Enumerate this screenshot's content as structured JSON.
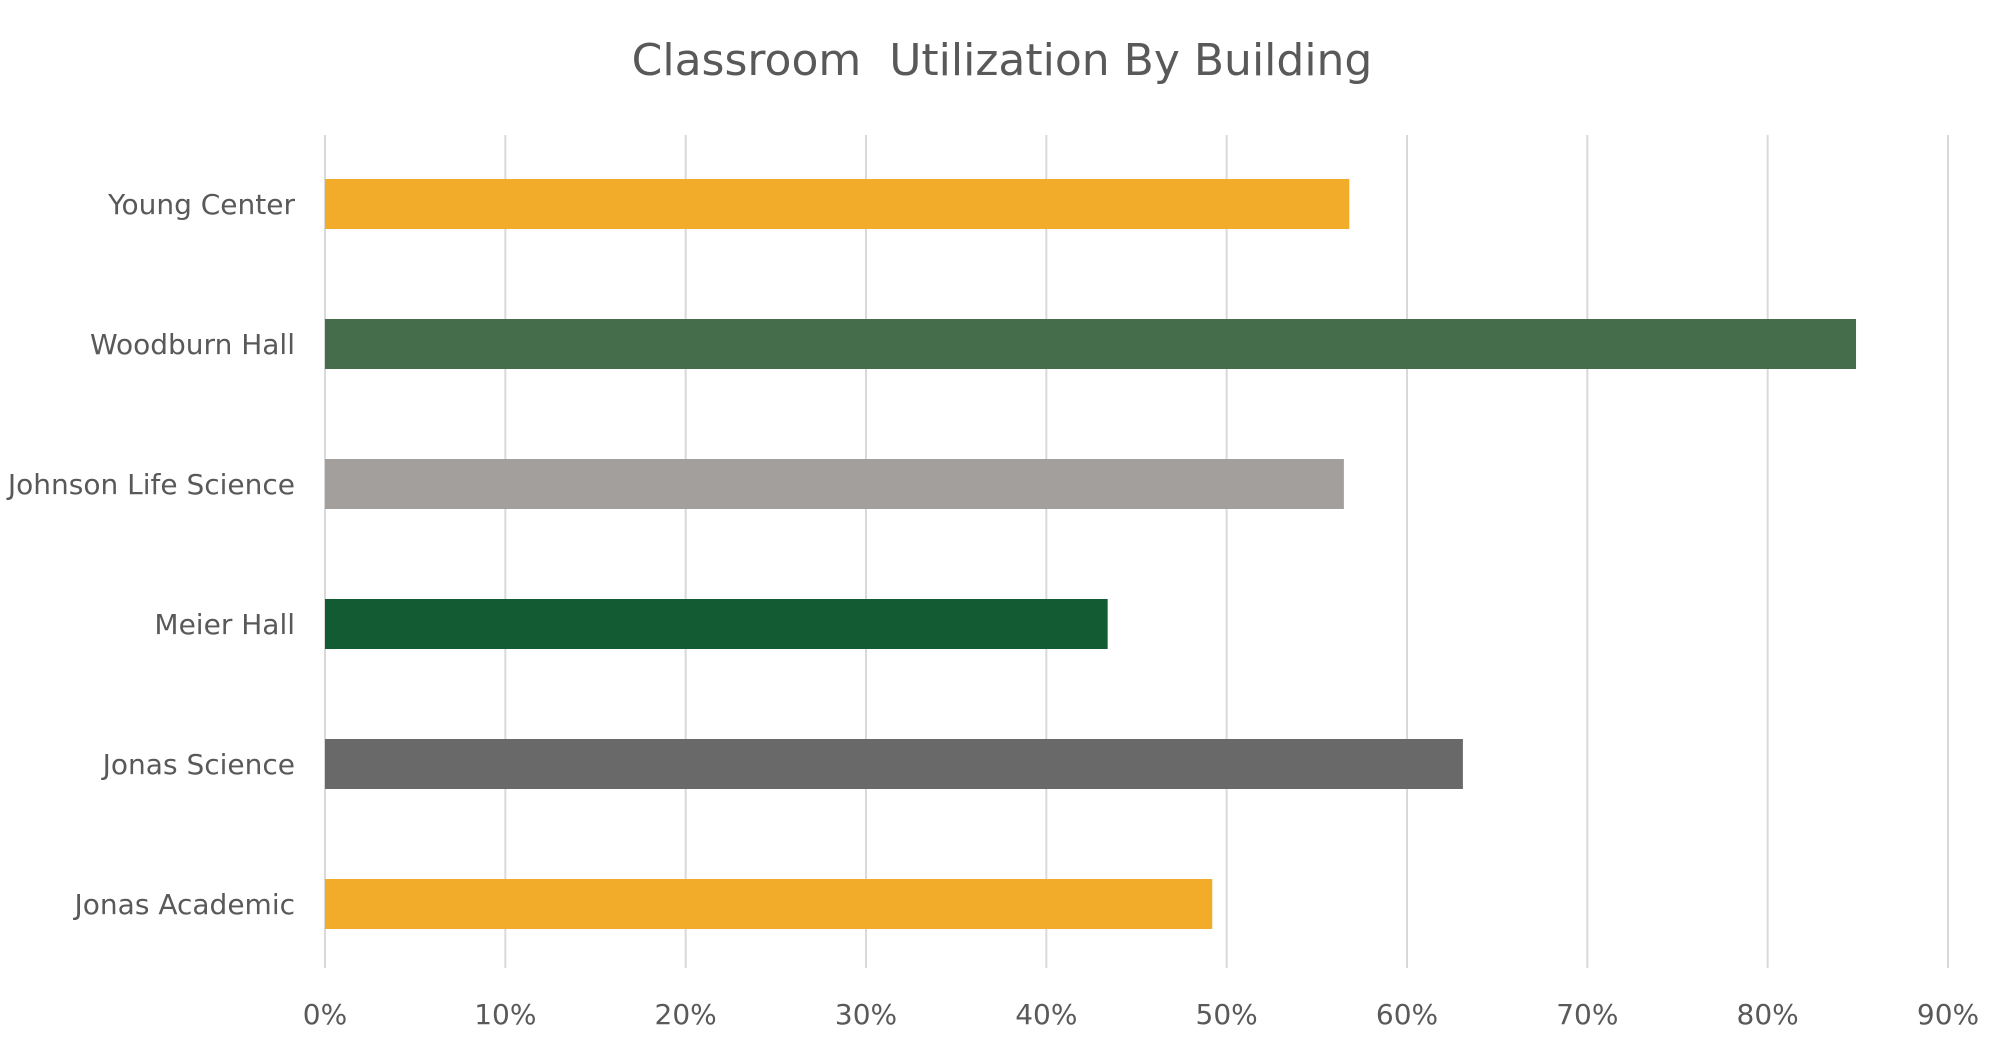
{
  "chart_data": {
    "type": "bar",
    "orientation": "horizontal",
    "title": "Classroom  Utilization By Building",
    "xlabel": "",
    "ylabel": "",
    "categories": [
      "Young Center",
      "Woodburn Hall",
      "Johnson Life Science",
      "Meier Hall",
      "Jonas Science",
      "Jonas Academic"
    ],
    "values": [
      0.568,
      0.849,
      0.565,
      0.434,
      0.631,
      0.492
    ],
    "colors": [
      "#F2AC29",
      "#456C4B",
      "#A39F9D",
      "#135B32",
      "#696969",
      "#F2AC29"
    ],
    "xlim": [
      0,
      0.9
    ],
    "xticks": [
      0,
      0.1,
      0.2,
      0.3,
      0.4,
      0.5,
      0.6,
      0.7,
      0.8,
      0.9
    ],
    "xtick_labels": [
      "0%",
      "10%",
      "20%",
      "30%",
      "40%",
      "50%",
      "60%",
      "70%",
      "80%",
      "90%"
    ],
    "grid": true,
    "grid_color": "#D9D9D9",
    "legend": "none"
  }
}
